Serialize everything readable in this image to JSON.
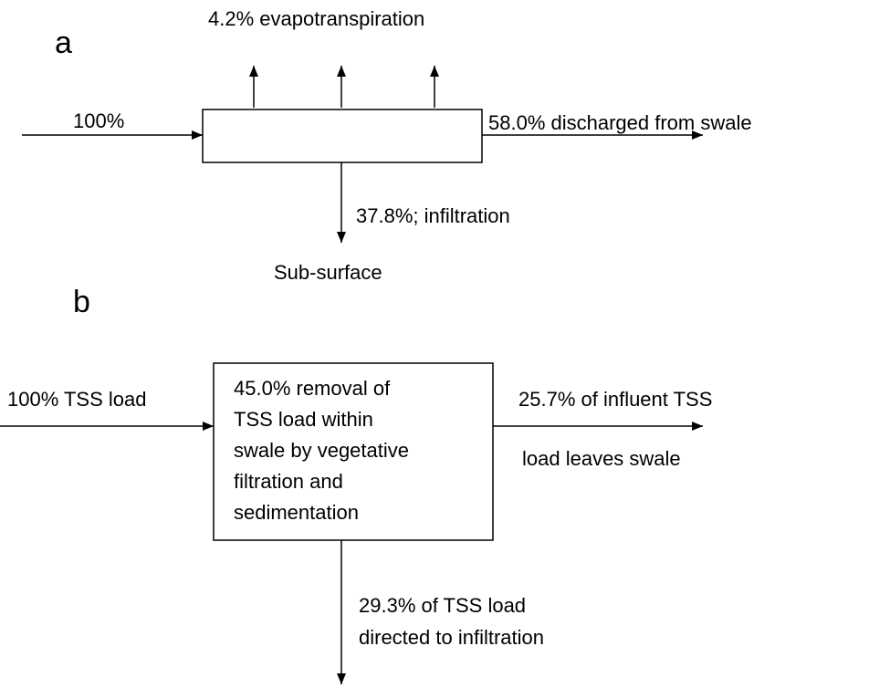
{
  "panel_a": {
    "label": "a",
    "top_label": "4.2% evapotranspiration",
    "inflow_label": "100%",
    "outflow_label": "58.0% discharged from swale",
    "down_label": "37.8%; infiltration",
    "bottom_label": "Sub-surface"
  },
  "panel_b": {
    "label": "b",
    "inflow_label": "100% TSS load",
    "box_lines": [
      "45.0% removal of",
      "TSS load within",
      "swale by vegetative",
      "filtration and",
      "sedimentation"
    ],
    "outflow_lines": [
      "25.7% of influent TSS",
      "load leaves swale"
    ],
    "down_lines": [
      "29.3% of TSS load",
      "directed to infiltration"
    ]
  }
}
